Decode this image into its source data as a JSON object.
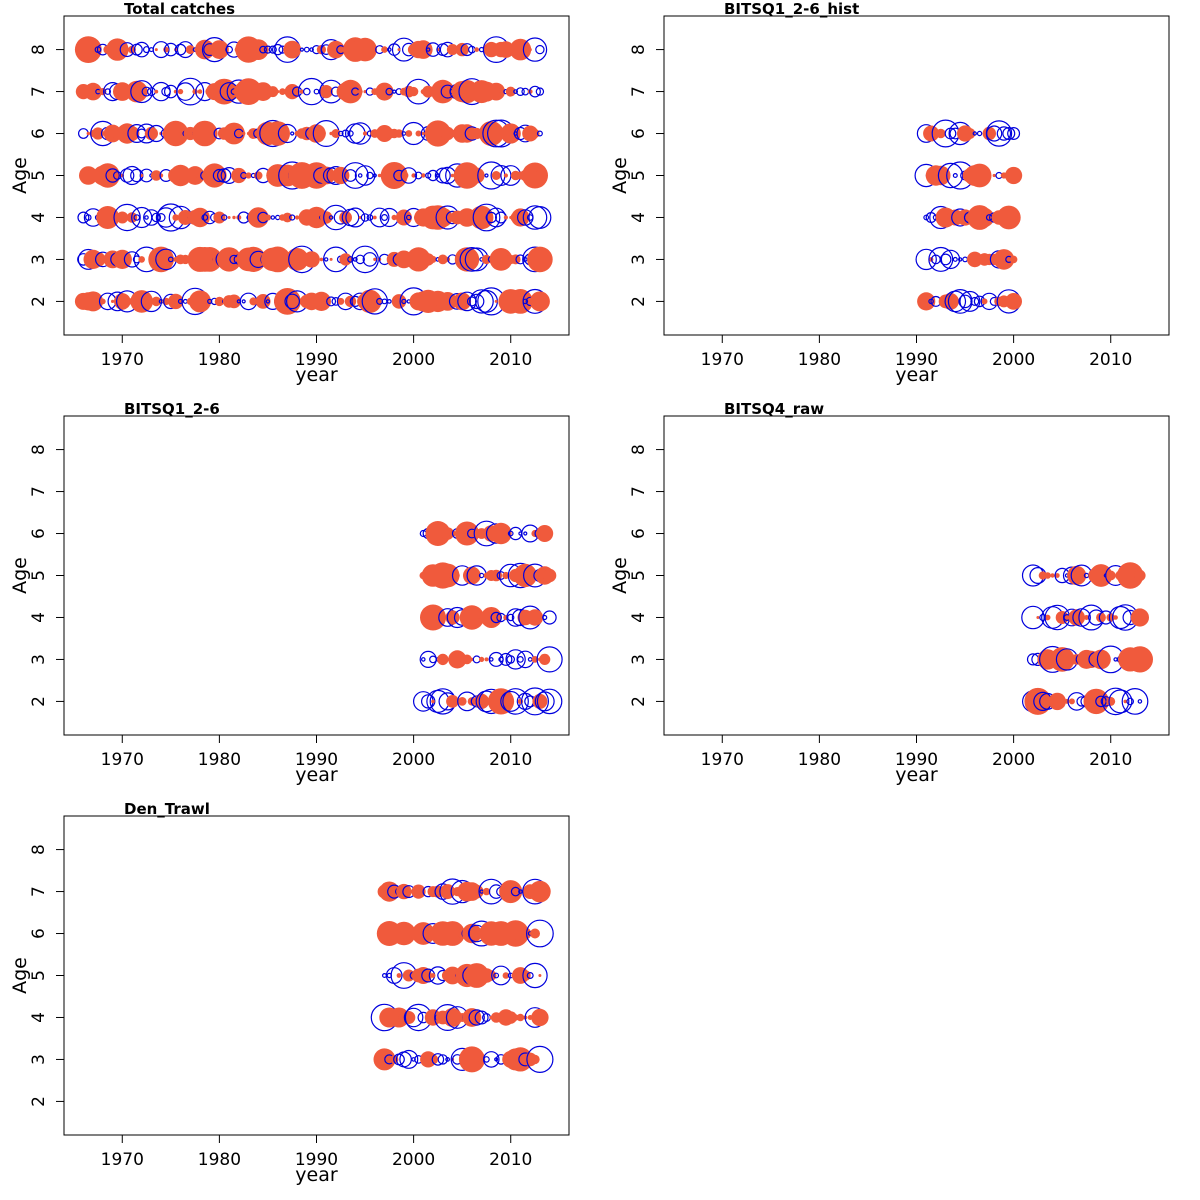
{
  "colors": {
    "positive": "#f05a3c",
    "negative": "#0000dd",
    "axis": "#000000",
    "background": "#ffffff"
  },
  "chart_data": [
    {
      "type": "scatter",
      "title": "Total catches",
      "xlabel": "year",
      "ylabel": "Age",
      "xlim": [
        1964,
        2016
      ],
      "ylim": [
        1.2,
        8.8
      ],
      "xticks": [
        "1970",
        "1980",
        "1990",
        "2000",
        "2010"
      ],
      "yticks": [
        "2",
        "3",
        "4",
        "5",
        "6",
        "7",
        "8"
      ],
      "year_range": [
        1966,
        2013
      ],
      "ages": [
        2,
        3,
        4,
        5,
        6,
        7,
        8
      ]
    },
    {
      "type": "scatter",
      "title": "BITSQ1_2-6_hist",
      "xlabel": "year",
      "ylabel": "Age",
      "xlim": [
        1964,
        2016
      ],
      "ylim": [
        1.2,
        8.8
      ],
      "xticks": [
        "1970",
        "1980",
        "1990",
        "2000",
        "2010"
      ],
      "yticks": [
        "2",
        "3",
        "4",
        "5",
        "6",
        "7",
        "8"
      ],
      "year_range": [
        1991,
        2000
      ],
      "ages": [
        2,
        3,
        4,
        5,
        6
      ]
    },
    {
      "type": "scatter",
      "title": "BITSQ1_2-6",
      "xlabel": "year",
      "ylabel": "Age",
      "xlim": [
        1964,
        2016
      ],
      "ylim": [
        1.2,
        8.8
      ],
      "xticks": [
        "1970",
        "1980",
        "1990",
        "2000",
        "2010"
      ],
      "yticks": [
        "2",
        "3",
        "4",
        "5",
        "6",
        "7",
        "8"
      ],
      "year_range": [
        2001,
        2014
      ],
      "ages": [
        2,
        3,
        4,
        5,
        6
      ]
    },
    {
      "type": "scatter",
      "title": "BITSQ4_raw",
      "xlabel": "year",
      "ylabel": "Age",
      "xlim": [
        1964,
        2016
      ],
      "ylim": [
        1.2,
        8.8
      ],
      "xticks": [
        "1970",
        "1980",
        "1990",
        "2000",
        "2010"
      ],
      "yticks": [
        "2",
        "3",
        "4",
        "5",
        "6",
        "7",
        "8"
      ],
      "year_range": [
        2002,
        2013
      ],
      "ages": [
        2,
        3,
        4,
        5
      ]
    },
    {
      "type": "scatter",
      "title": "Den_Trawl",
      "xlabel": "year",
      "ylabel": "Age",
      "xlim": [
        1964,
        2016
      ],
      "ylim": [
        1.2,
        8.8
      ],
      "xticks": [
        "1970",
        "1980",
        "1990",
        "2000",
        "2010"
      ],
      "yticks": [
        "2",
        "3",
        "4",
        "5",
        "6",
        "7",
        "8"
      ],
      "year_range": [
        1997,
        2013
      ],
      "ages": [
        3,
        4,
        5,
        6,
        7
      ]
    }
  ]
}
